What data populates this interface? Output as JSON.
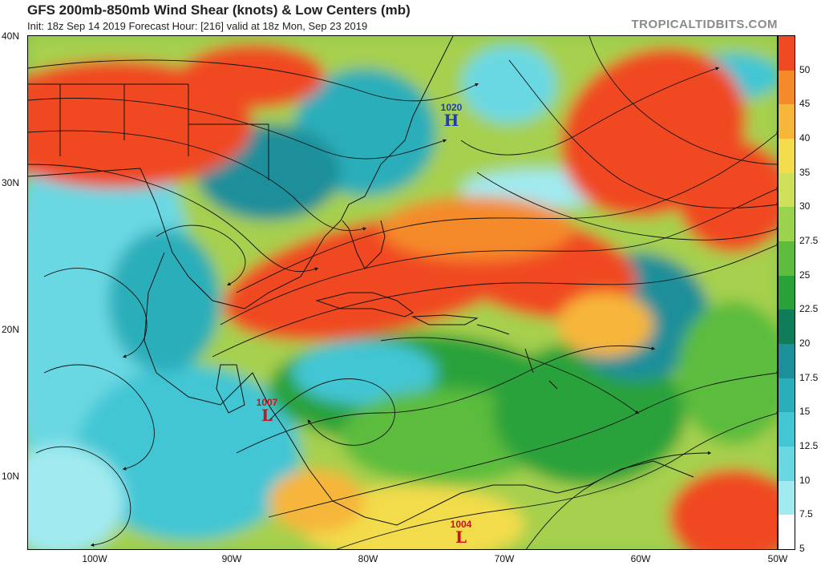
{
  "title": "GFS 200mb-850mb Wind Shear (knots) & Low Centers (mb)",
  "subtitle": "Init: 18z Sep 14 2019   Forecast Hour: [216]   valid at 18z Mon, Sep 23 2019",
  "brand": "TROPICALTIDBITS.COM",
  "lat_labels": [
    "40N",
    "30N",
    "20N",
    "10N"
  ],
  "lon_labels": [
    "100W",
    "90W",
    "80W",
    "70W",
    "60W",
    "50W"
  ],
  "colorbar": {
    "labels": [
      "50",
      "45",
      "40",
      "35",
      "30",
      "27.5",
      "25",
      "22.5",
      "20",
      "17.5",
      "15",
      "12.5",
      "10",
      "7.5",
      "5"
    ],
    "colors": [
      "#f04a22",
      "#f58a2a",
      "#f6b63a",
      "#f2dc4c",
      "#cfe05a",
      "#9bd24e",
      "#5cbc3c",
      "#2aa23a",
      "#0f7d5a",
      "#1b8f9a",
      "#2aaeba",
      "#42c6d4",
      "#6ad8e2",
      "#a0eaf0",
      "#ffffff"
    ]
  },
  "pressure_centers": [
    {
      "kind": "H",
      "value": "1020",
      "color": "#1f3fb0"
    },
    {
      "kind": "L",
      "value": "1007",
      "color": "#c8141e"
    },
    {
      "kind": "L",
      "value": "1004",
      "color": "#c8141e"
    }
  ]
}
